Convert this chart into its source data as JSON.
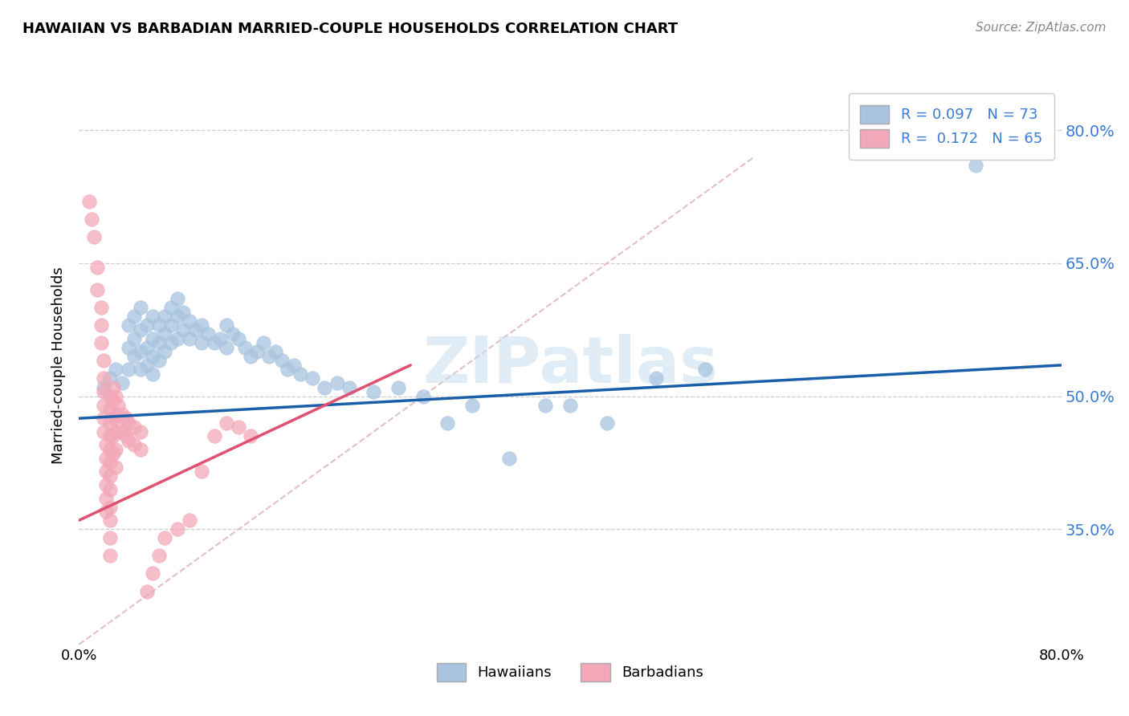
{
  "title": "HAWAIIAN VS BARBADIAN MARRIED-COUPLE HOUSEHOLDS CORRELATION CHART",
  "source": "Source: ZipAtlas.com",
  "ylabel": "Married-couple Households",
  "xlim": [
    0.0,
    0.8
  ],
  "ylim": [
    0.22,
    0.85
  ],
  "xtick_vals": [
    0.0,
    0.8
  ],
  "xtick_labels": [
    "0.0%",
    "80.0%"
  ],
  "ytick_values": [
    0.35,
    0.5,
    0.65,
    0.8
  ],
  "hawaii_R": "0.097",
  "hawaii_N": "73",
  "barbadian_R": "0.172",
  "barbadian_N": "65",
  "hawaii_color": "#a8c4e0",
  "barbadian_color": "#f2a8b8",
  "hawaii_trend_color": "#1a5fa8",
  "barbadian_trend_color": "#e05070",
  "tick_color": "#3a7bd5",
  "diagonal_color": "#e0b8c0",
  "watermark_text": "ZIPatlas",
  "watermark_color": "#c8ddf0",
  "hawaii_points": [
    [
      0.02,
      0.51
    ],
    [
      0.025,
      0.52
    ],
    [
      0.03,
      0.53
    ],
    [
      0.035,
      0.515
    ],
    [
      0.04,
      0.58
    ],
    [
      0.04,
      0.555
    ],
    [
      0.04,
      0.53
    ],
    [
      0.045,
      0.59
    ],
    [
      0.045,
      0.565
    ],
    [
      0.045,
      0.545
    ],
    [
      0.05,
      0.6
    ],
    [
      0.05,
      0.575
    ],
    [
      0.05,
      0.55
    ],
    [
      0.05,
      0.53
    ],
    [
      0.055,
      0.58
    ],
    [
      0.055,
      0.555
    ],
    [
      0.055,
      0.535
    ],
    [
      0.06,
      0.59
    ],
    [
      0.06,
      0.565
    ],
    [
      0.06,
      0.545
    ],
    [
      0.06,
      0.525
    ],
    [
      0.065,
      0.58
    ],
    [
      0.065,
      0.56
    ],
    [
      0.065,
      0.54
    ],
    [
      0.07,
      0.59
    ],
    [
      0.07,
      0.57
    ],
    [
      0.07,
      0.55
    ],
    [
      0.075,
      0.6
    ],
    [
      0.075,
      0.58
    ],
    [
      0.075,
      0.56
    ],
    [
      0.08,
      0.61
    ],
    [
      0.08,
      0.59
    ],
    [
      0.08,
      0.565
    ],
    [
      0.085,
      0.595
    ],
    [
      0.085,
      0.575
    ],
    [
      0.09,
      0.585
    ],
    [
      0.09,
      0.565
    ],
    [
      0.095,
      0.575
    ],
    [
      0.1,
      0.58
    ],
    [
      0.1,
      0.56
    ],
    [
      0.105,
      0.57
    ],
    [
      0.11,
      0.56
    ],
    [
      0.115,
      0.565
    ],
    [
      0.12,
      0.58
    ],
    [
      0.12,
      0.555
    ],
    [
      0.125,
      0.57
    ],
    [
      0.13,
      0.565
    ],
    [
      0.135,
      0.555
    ],
    [
      0.14,
      0.545
    ],
    [
      0.145,
      0.55
    ],
    [
      0.15,
      0.56
    ],
    [
      0.155,
      0.545
    ],
    [
      0.16,
      0.55
    ],
    [
      0.165,
      0.54
    ],
    [
      0.17,
      0.53
    ],
    [
      0.175,
      0.535
    ],
    [
      0.18,
      0.525
    ],
    [
      0.19,
      0.52
    ],
    [
      0.2,
      0.51
    ],
    [
      0.21,
      0.515
    ],
    [
      0.22,
      0.51
    ],
    [
      0.24,
      0.505
    ],
    [
      0.26,
      0.51
    ],
    [
      0.28,
      0.5
    ],
    [
      0.3,
      0.47
    ],
    [
      0.32,
      0.49
    ],
    [
      0.35,
      0.43
    ],
    [
      0.38,
      0.49
    ],
    [
      0.4,
      0.49
    ],
    [
      0.43,
      0.47
    ],
    [
      0.47,
      0.52
    ],
    [
      0.51,
      0.53
    ],
    [
      0.73,
      0.76
    ]
  ],
  "barbadian_points": [
    [
      0.008,
      0.72
    ],
    [
      0.01,
      0.7
    ],
    [
      0.012,
      0.68
    ],
    [
      0.015,
      0.645
    ],
    [
      0.015,
      0.62
    ],
    [
      0.018,
      0.6
    ],
    [
      0.018,
      0.58
    ],
    [
      0.018,
      0.56
    ],
    [
      0.02,
      0.54
    ],
    [
      0.02,
      0.52
    ],
    [
      0.02,
      0.505
    ],
    [
      0.02,
      0.49
    ],
    [
      0.02,
      0.475
    ],
    [
      0.02,
      0.46
    ],
    [
      0.022,
      0.445
    ],
    [
      0.022,
      0.43
    ],
    [
      0.022,
      0.415
    ],
    [
      0.022,
      0.4
    ],
    [
      0.022,
      0.385
    ],
    [
      0.022,
      0.37
    ],
    [
      0.025,
      0.5
    ],
    [
      0.025,
      0.485
    ],
    [
      0.025,
      0.47
    ],
    [
      0.025,
      0.455
    ],
    [
      0.025,
      0.44
    ],
    [
      0.025,
      0.425
    ],
    [
      0.025,
      0.41
    ],
    [
      0.025,
      0.395
    ],
    [
      0.025,
      0.375
    ],
    [
      0.025,
      0.36
    ],
    [
      0.025,
      0.34
    ],
    [
      0.025,
      0.32
    ],
    [
      0.028,
      0.51
    ],
    [
      0.028,
      0.495
    ],
    [
      0.028,
      0.475
    ],
    [
      0.028,
      0.455
    ],
    [
      0.028,
      0.435
    ],
    [
      0.03,
      0.5
    ],
    [
      0.03,
      0.48
    ],
    [
      0.03,
      0.46
    ],
    [
      0.03,
      0.44
    ],
    [
      0.03,
      0.42
    ],
    [
      0.032,
      0.49
    ],
    [
      0.032,
      0.47
    ],
    [
      0.035,
      0.48
    ],
    [
      0.035,
      0.46
    ],
    [
      0.038,
      0.475
    ],
    [
      0.038,
      0.455
    ],
    [
      0.04,
      0.47
    ],
    [
      0.04,
      0.45
    ],
    [
      0.045,
      0.465
    ],
    [
      0.045,
      0.445
    ],
    [
      0.05,
      0.46
    ],
    [
      0.05,
      0.44
    ],
    [
      0.055,
      0.28
    ],
    [
      0.06,
      0.3
    ],
    [
      0.065,
      0.32
    ],
    [
      0.07,
      0.34
    ],
    [
      0.08,
      0.35
    ],
    [
      0.09,
      0.36
    ],
    [
      0.1,
      0.415
    ],
    [
      0.11,
      0.455
    ],
    [
      0.12,
      0.47
    ],
    [
      0.13,
      0.465
    ],
    [
      0.14,
      0.455
    ]
  ],
  "hawaii_trend_x": [
    0.0,
    0.8
  ],
  "hawaii_trend_y": [
    0.475,
    0.535
  ],
  "barbadian_trend_x": [
    0.0,
    0.27
  ],
  "barbadian_trend_y": [
    0.36,
    0.535
  ]
}
